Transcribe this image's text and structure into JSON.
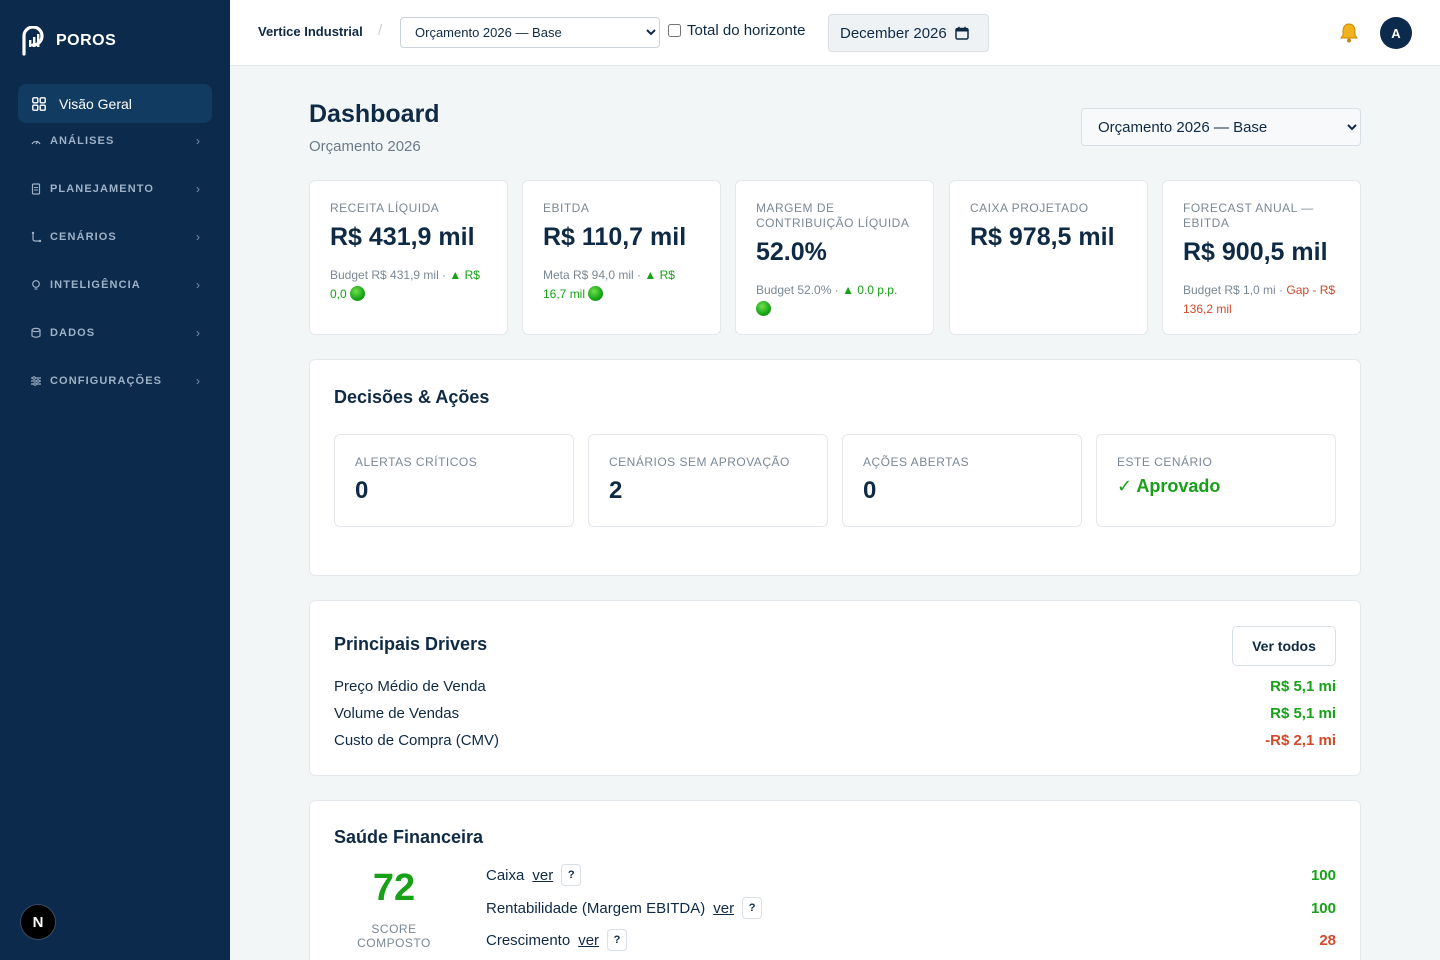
{
  "brand": {
    "name": "POROS"
  },
  "sidebar": {
    "active": {
      "label": "Visão Geral"
    },
    "sections": [
      {
        "label": "ANÁLISES",
        "icon": "gauge-icon"
      },
      {
        "label": "PLANEJAMENTO",
        "icon": "document-icon"
      },
      {
        "label": "CENÁRIOS",
        "icon": "branch-icon"
      },
      {
        "label": "INTELIGÊNCIA",
        "icon": "lightbulb-icon"
      },
      {
        "label": "DADOS",
        "icon": "database-icon"
      },
      {
        "label": "CONFIGURAÇÕES",
        "icon": "sliders-icon"
      }
    ],
    "badge": "N"
  },
  "topbar": {
    "company": "Vertice Industrial",
    "scenario_selected": "Orçamento 2026 — Base",
    "total_label": "Total do horizonte",
    "date_value": "December 2026",
    "avatar_initial": "A"
  },
  "page": {
    "title": "Dashboard",
    "subtitle": "Orçamento 2026",
    "scenario_selected": "Orçamento 2026 — Base"
  },
  "kpis": [
    {
      "label": "RECEITA LÍQUIDA",
      "value": "R$ 431,9 mil",
      "sub_prefix": "Budget R$ 431,9 mil · ",
      "sub_delta": "▲ R$ 0,0",
      "status": "green"
    },
    {
      "label": "EBITDA",
      "value": "R$ 110,7 mil",
      "sub_prefix": "Meta R$ 94,0 mil · ",
      "sub_delta": "▲ R$ 16,7 mil",
      "status": "green"
    },
    {
      "label": "MARGEM DE CONTRIBUIÇÃO LÍQUIDA",
      "value": "52.0%",
      "sub_prefix": "Budget 52.0% · ",
      "sub_delta": "▲ 0.0 p.p.",
      "status": "green"
    },
    {
      "label": "CAIXA PROJETADO",
      "value": "R$ 978,5 mil"
    },
    {
      "label": "FORECAST ANUAL — EBITDA",
      "value": "R$ 900,5 mil",
      "sub_prefix": "Budget R$ 1,0 mi · ",
      "sub_delta": "Gap - R$ 136,2 mil",
      "status": "red"
    }
  ],
  "decisoes": {
    "title": "Decisões & Ações",
    "items": [
      {
        "label": "ALERTAS CRÍTICOS",
        "value": "0"
      },
      {
        "label": "CENÁRIOS SEM APROVAÇÃO",
        "value": "2"
      },
      {
        "label": "AÇÕES ABERTAS",
        "value": "0"
      },
      {
        "label": "ESTE CENÁRIO",
        "value": "✓ Aprovado"
      }
    ]
  },
  "drivers": {
    "title": "Principais Drivers",
    "button": "Ver todos",
    "rows": [
      {
        "name": "Preço Médio de Venda",
        "value": "R$ 5,1 mi",
        "tone": "green"
      },
      {
        "name": "Volume de Vendas",
        "value": "R$ 5,1 mi",
        "tone": "green"
      },
      {
        "name": "Custo de Compra (CMV)",
        "value": "-R$ 2,1 mi",
        "tone": "red"
      }
    ]
  },
  "saude": {
    "title": "Saúde Financeira",
    "score": "72",
    "score_label": "SCORE COMPOSTO",
    "rows": [
      {
        "name": "Caixa",
        "link": "ver",
        "help": "?",
        "value": "100",
        "tone": "green"
      },
      {
        "name": "Rentabilidade (Margem EBITDA)",
        "link": "ver",
        "help": "?",
        "value": "100",
        "tone": "green"
      },
      {
        "name": "Crescimento",
        "link": "ver",
        "help": "?",
        "value": "28",
        "tone": "red"
      }
    ]
  },
  "colors": {
    "sidebar": "#0b2a4c",
    "accent_green": "#18a018",
    "accent_red": "#d04a2a",
    "text": "#0f2a44"
  }
}
